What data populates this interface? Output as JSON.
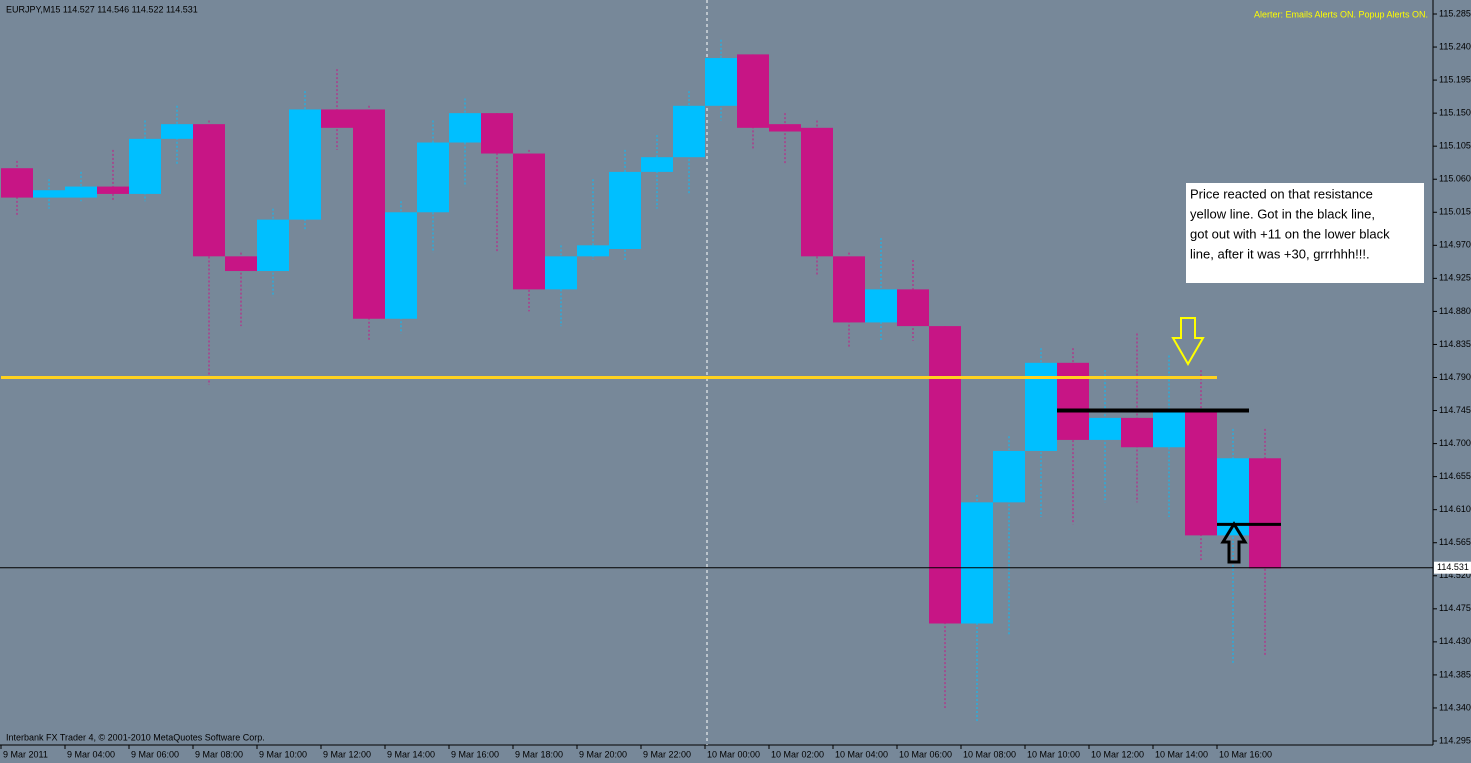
{
  "chart_data": {
    "type": "candlestick",
    "header": "EURJPY,M15  114.527 114.546 114.522 114.531",
    "alerter": "Alerter:  Emails Alerts ON.  Popup Alerts ON.",
    "footer": "Interbank FX Trader 4, © 2001-2010 MetaQuotes Software Corp.",
    "annotation": [
      "Price reacted on that resistance",
      "yellow line. Got in the black line,",
      "got out with +11  on the lower black",
      "line, after it was +30, grrrhhh!!!."
    ],
    "categories": [
      "9 Mar 2011",
      null,
      "9 Mar 04:00",
      null,
      "9 Mar 06:00",
      null,
      "9 Mar 08:00",
      null,
      "9 Mar 10:00",
      null,
      "9 Mar 12:00",
      null,
      "9 Mar 14:00",
      null,
      "9 Mar 16:00",
      null,
      "9 Mar 18:00",
      null,
      "9 Mar 20:00",
      null,
      "9 Mar 22:00",
      null,
      "10 Mar 00:00",
      null,
      "10 Mar 02:00",
      null,
      "10 Mar 04:00",
      null,
      "10 Mar 06:00",
      null,
      "10 Mar 08:00",
      null,
      "10 Mar 10:00",
      null,
      "10 Mar 12:00",
      null,
      "10 Mar 14:00",
      null,
      "10 Mar 16:00",
      null
    ],
    "open": [
      115.075,
      115.035,
      115.035,
      115.05,
      115.04,
      115.115,
      115.135,
      114.955,
      114.935,
      115.005,
      115.155,
      115.155,
      114.87,
      115.015,
      115.11,
      115.15,
      115.095,
      114.91,
      114.955,
      114.965,
      115.07,
      115.09,
      115.16,
      115.23,
      115.135,
      115.13,
      114.955,
      114.865,
      114.91,
      114.86,
      114.455,
      114.62,
      114.69,
      114.81,
      114.705,
      114.735,
      114.695,
      114.745,
      114.575,
      114.68
    ],
    "high": [
      115.085,
      115.06,
      115.07,
      115.1,
      115.14,
      115.16,
      115.14,
      114.96,
      115.02,
      115.18,
      115.21,
      115.16,
      115.03,
      115.14,
      115.17,
      115.15,
      115.1,
      114.97,
      115.06,
      115.1,
      115.12,
      115.18,
      115.25,
      115.23,
      115.15,
      115.14,
      114.96,
      114.98,
      114.95,
      114.86,
      114.63,
      114.71,
      114.83,
      114.83,
      114.8,
      114.85,
      114.82,
      114.8,
      114.72,
      114.72
    ],
    "low": [
      115.01,
      115.02,
      115.03,
      115.03,
      115.03,
      115.08,
      114.78,
      114.86,
      114.9,
      114.99,
      115.1,
      114.84,
      114.85,
      114.96,
      115.05,
      114.96,
      114.88,
      114.86,
      114.95,
      114.95,
      115.02,
      115.04,
      115.14,
      115.1,
      115.08,
      114.93,
      114.83,
      114.84,
      114.84,
      114.34,
      114.32,
      114.44,
      114.6,
      114.59,
      114.62,
      114.62,
      114.6,
      114.54,
      114.4,
      114.41
    ],
    "close": [
      115.035,
      115.045,
      115.05,
      115.04,
      115.115,
      115.135,
      114.955,
      114.935,
      115.005,
      115.155,
      115.13,
      114.87,
      115.015,
      115.11,
      115.15,
      115.095,
      114.91,
      114.955,
      114.97,
      115.07,
      115.09,
      115.16,
      115.225,
      115.13,
      115.125,
      114.955,
      114.865,
      114.91,
      114.86,
      114.455,
      114.62,
      114.69,
      114.81,
      114.705,
      114.735,
      114.695,
      114.745,
      114.575,
      114.68,
      114.53
    ],
    "up_color": "#00bfff",
    "down_color": "#c71585",
    "ylim": [
      114.295,
      115.285
    ],
    "yticks": [
      115.285,
      {
        "value": 115.24,
        "label": "115.240"
      },
      115.195,
      {
        "value": 115.15,
        "label": "115.150"
      },
      115.105,
      {
        "value": 115.06,
        "label": "115.060"
      },
      115.015,
      {
        "value": 114.97,
        "label": "114.970"
      },
      114.925,
      {
        "value": 114.88,
        "label": "114.880"
      },
      114.835,
      {
        "value": 114.79,
        "label": "114.790"
      },
      114.745,
      {
        "value": 114.7,
        "label": "114.700"
      },
      114.655,
      {
        "value": 114.61,
        "label": "114.610"
      },
      114.565,
      {
        "value": 114.52,
        "label": "114.520"
      },
      114.475,
      {
        "value": 114.43,
        "label": "114.430"
      },
      114.385,
      {
        "value": 114.34,
        "label": "114.340"
      },
      114.295
    ],
    "current_price": 114.531,
    "hlines": [
      {
        "value": 114.79,
        "color": "#ffd21f",
        "start": 0,
        "end": 38
      },
      {
        "value": 114.745,
        "color": "#000000",
        "start": 33,
        "end": 39
      },
      {
        "value": 114.59,
        "color": "#000000",
        "start": 38,
        "end": 40
      }
    ]
  }
}
